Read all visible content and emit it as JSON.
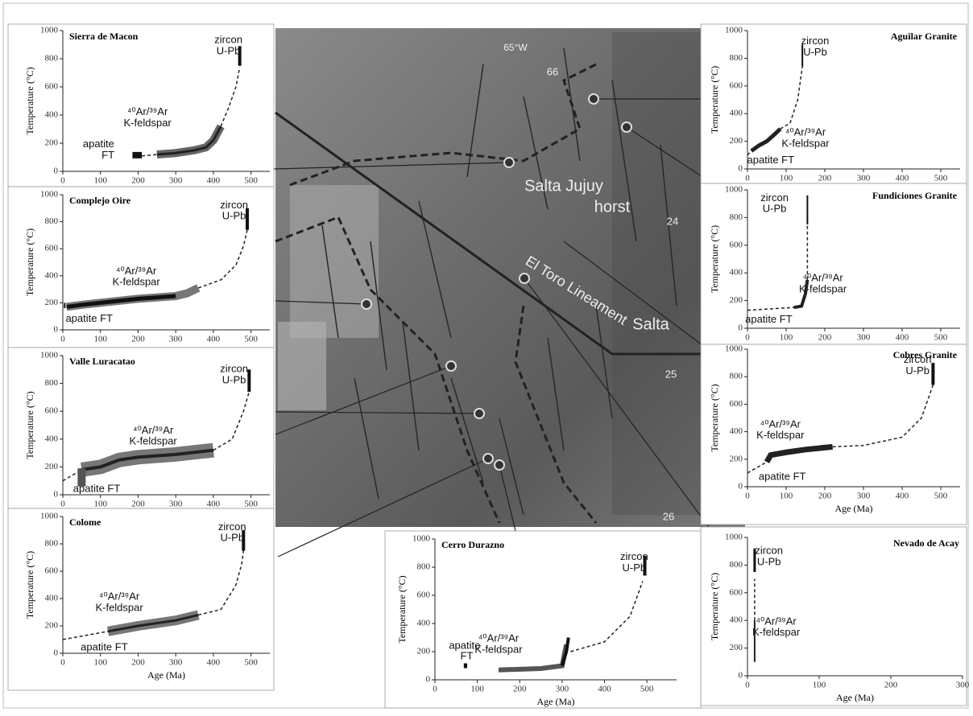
{
  "chart_data": [
    {
      "type": "line",
      "title": "Sierra de Macon",
      "ylabel": "Temperature (°C)",
      "xlim": [
        0,
        550
      ],
      "ylim": [
        0,
        1000
      ],
      "xticks": [
        0,
        100,
        200,
        300,
        400,
        500
      ],
      "yticks": [
        0,
        200,
        400,
        600,
        800,
        1000
      ],
      "annotations": [
        "zircon",
        "U-Pb",
        "⁴⁰Ar/³⁹Ar",
        "K-feldspar",
        "apatite",
        "FT"
      ],
      "series": [
        {
          "x": [
            250,
            300,
            350,
            380,
            400,
            420
          ],
          "values": [
            120,
            130,
            150,
            170,
            220,
            320
          ],
          "color": "#666",
          "width": 10,
          "dash": false
        },
        {
          "x": [
            250,
            300,
            350,
            380,
            400,
            420
          ],
          "values": [
            120,
            130,
            150,
            170,
            220,
            320
          ],
          "color": "#222",
          "width": 3,
          "dash": false
        },
        {
          "x": [
            210,
            250
          ],
          "values": [
            110,
            120
          ],
          "color": "#222",
          "width": 1.5,
          "dash": true
        },
        {
          "x": [
            420,
            440,
            460,
            470
          ],
          "values": [
            320,
            450,
            600,
            740
          ],
          "color": "#222",
          "width": 1.5,
          "dash": true
        },
        {
          "x": [
            470,
            470
          ],
          "values": [
            750,
            890
          ],
          "color": "#111",
          "width": 4,
          "dash": false
        },
        {
          "x": [
            185,
            210
          ],
          "values": [
            115,
            115
          ],
          "color": "#111",
          "width": 8,
          "dash": false
        }
      ]
    },
    {
      "type": "line",
      "title": "Complejo Oire",
      "ylabel": "Temperature (°C)",
      "xlim": [
        0,
        550
      ],
      "ylim": [
        0,
        1000
      ],
      "xticks": [
        0,
        100,
        200,
        300,
        400,
        500
      ],
      "yticks": [
        0,
        200,
        400,
        600,
        800,
        1000
      ],
      "annotations": [
        "zircon",
        "U-Pb",
        "⁴⁰Ar/³⁹Ar",
        "K-feldspar",
        "apatite FT"
      ],
      "series": [
        {
          "x": [
            10,
            50,
            100,
            200,
            300,
            330,
            360
          ],
          "values": [
            170,
            185,
            200,
            230,
            250,
            270,
            310
          ],
          "color": "#777",
          "width": 10,
          "dash": false
        },
        {
          "x": [
            10,
            50,
            100,
            200,
            300
          ],
          "values": [
            170,
            185,
            200,
            230,
            250
          ],
          "color": "#111",
          "width": 5,
          "dash": false
        },
        {
          "x": [
            360,
            420,
            460,
            480,
            490
          ],
          "values": [
            310,
            370,
            480,
            620,
            740
          ],
          "color": "#222",
          "width": 1.5,
          "dash": true
        },
        {
          "x": [
            490,
            490
          ],
          "values": [
            740,
            900
          ],
          "color": "#111",
          "width": 4,
          "dash": false
        },
        {
          "x": [
            5,
            5
          ],
          "values": [
            160,
            200
          ],
          "color": "#111",
          "width": 2,
          "dash": false
        }
      ]
    },
    {
      "type": "line",
      "title": "Valle Luracatao",
      "ylabel": "Temperature (°C)",
      "xlim": [
        0,
        550
      ],
      "ylim": [
        0,
        1000
      ],
      "xticks": [
        0,
        100,
        200,
        300,
        400,
        500
      ],
      "yticks": [
        0,
        200,
        400,
        600,
        800,
        1000
      ],
      "annotations": [
        "zircon",
        "U-Pb",
        "⁴⁰Ar/³⁹Ar",
        "K-feldspar",
        "apatite  FT"
      ],
      "series": [
        {
          "x": [
            50,
            100,
            150,
            200,
            300,
            400
          ],
          "values": [
            180,
            200,
            250,
            270,
            290,
            320
          ],
          "color": "#777",
          "width": 18,
          "dash": false
        },
        {
          "x": [
            50,
            100,
            150,
            200,
            300,
            400
          ],
          "values": [
            180,
            200,
            250,
            270,
            290,
            320
          ],
          "color": "#222",
          "width": 4,
          "dash": false
        },
        {
          "x": [
            0,
            50
          ],
          "values": [
            100,
            180
          ],
          "color": "#222",
          "width": 1.5,
          "dash": true
        },
        {
          "x": [
            400,
            450,
            480,
            495
          ],
          "values": [
            320,
            400,
            600,
            740
          ],
          "color": "#222",
          "width": 1.5,
          "dash": true
        },
        {
          "x": [
            495,
            495
          ],
          "values": [
            740,
            900
          ],
          "color": "#111",
          "width": 4,
          "dash": false
        },
        {
          "x": [
            50,
            50
          ],
          "values": [
            60,
            190
          ],
          "color": "#555",
          "width": 10,
          "dash": false
        }
      ]
    },
    {
      "type": "line",
      "title": "Colome",
      "ylabel": "Temperature (°C)",
      "xlabel": "Age (Ma)",
      "xlim": [
        0,
        550
      ],
      "ylim": [
        0,
        1000
      ],
      "xticks": [
        0,
        100,
        200,
        300,
        400,
        500
      ],
      "yticks": [
        0,
        200,
        400,
        600,
        800,
        1000
      ],
      "annotations": [
        "zircon",
        "U-Pb",
        "⁴⁰Ar/³⁹Ar",
        "K-feldspar",
        "apatite FT"
      ],
      "series": [
        {
          "x": [
            120,
            200,
            300,
            360
          ],
          "values": [
            160,
            200,
            240,
            280
          ],
          "color": "#777",
          "width": 12,
          "dash": false
        },
        {
          "x": [
            120,
            200,
            300,
            360
          ],
          "values": [
            160,
            200,
            240,
            280
          ],
          "color": "#222",
          "width": 3,
          "dash": false
        },
        {
          "x": [
            0,
            120
          ],
          "values": [
            100,
            160
          ],
          "color": "#222",
          "width": 1.5,
          "dash": true
        },
        {
          "x": [
            360,
            420,
            460,
            475,
            480
          ],
          "values": [
            280,
            320,
            500,
            650,
            750
          ],
          "color": "#222",
          "width": 1.5,
          "dash": true
        },
        {
          "x": [
            480,
            480
          ],
          "values": [
            750,
            900
          ],
          "color": "#111",
          "width": 4,
          "dash": false
        }
      ]
    },
    {
      "type": "line",
      "title": "Aguilar Granite",
      "ylabel": "Temperature (°C)",
      "xlim": [
        0,
        550
      ],
      "ylim": [
        0,
        1000
      ],
      "xticks": [
        0,
        100,
        200,
        300,
        400,
        500
      ],
      "yticks": [
        0,
        200,
        400,
        600,
        800,
        1000
      ],
      "annotations": [
        "zircon",
        "U-Pb",
        "⁴⁰Ar/³⁹Ar",
        "K-feldspar",
        "apatite FT"
      ],
      "series": [
        {
          "x": [
            10,
            30,
            50,
            70,
            85
          ],
          "values": [
            130,
            170,
            200,
            250,
            290
          ],
          "color": "#222",
          "width": 5,
          "dash": false
        },
        {
          "x": [
            0,
            10
          ],
          "values": [
            100,
            130
          ],
          "color": "#222",
          "width": 1.5,
          "dash": true
        },
        {
          "x": [
            85,
            110,
            130,
            142
          ],
          "values": [
            290,
            330,
            500,
            740
          ],
          "color": "#222",
          "width": 1.5,
          "dash": true
        },
        {
          "x": [
            142,
            142
          ],
          "values": [
            740,
            900
          ],
          "color": "#111",
          "width": 2,
          "dash": false
        }
      ]
    },
    {
      "type": "line",
      "title": "Fundiciones Granite",
      "ylabel": "Temperature (°C)",
      "xlim": [
        0,
        550
      ],
      "ylim": [
        0,
        1000
      ],
      "xticks": [
        0,
        100,
        200,
        300,
        400,
        500
      ],
      "yticks": [
        0,
        200,
        400,
        600,
        800,
        1000
      ],
      "annotations": [
        "zircon",
        "U-Pb",
        "⁴⁰Ar/³⁹Ar",
        "K-feldspar",
        "apatite FT"
      ],
      "series": [
        {
          "x": [
            120,
            140,
            150,
            155
          ],
          "values": [
            150,
            160,
            250,
            350
          ],
          "color": "#222",
          "width": 4,
          "dash": false
        },
        {
          "x": [
            0,
            120
          ],
          "values": [
            130,
            150
          ],
          "color": "#222",
          "width": 1.5,
          "dash": true
        },
        {
          "x": [
            155,
            155
          ],
          "values": [
            350,
            750
          ],
          "color": "#222",
          "width": 1.5,
          "dash": true
        },
        {
          "x": [
            155,
            155
          ],
          "values": [
            750,
            960
          ],
          "color": "#111",
          "width": 2,
          "dash": false
        }
      ]
    },
    {
      "type": "line",
      "title": "Cobres Granite",
      "ylabel": "Temperature (°C)",
      "xlabel": "Age (Ma)",
      "xlim": [
        0,
        550
      ],
      "ylim": [
        0,
        1000
      ],
      "xticks": [
        0,
        100,
        200,
        300,
        400,
        500
      ],
      "yticks": [
        0,
        200,
        400,
        600,
        800,
        1000
      ],
      "annotations": [
        "zircon",
        "U-Pb",
        "⁴⁰Ar/³⁹Ar",
        "K-feldspar",
        "apatite FT"
      ],
      "series": [
        {
          "x": [
            50,
            60,
            100,
            150,
            220
          ],
          "values": [
            180,
            230,
            250,
            270,
            290
          ],
          "color": "#222",
          "width": 7,
          "dash": false
        },
        {
          "x": [
            0,
            50
          ],
          "values": [
            100,
            180
          ],
          "color": "#222",
          "width": 1.5,
          "dash": true
        },
        {
          "x": [
            220,
            300,
            400,
            450,
            480
          ],
          "values": [
            290,
            300,
            360,
            500,
            740
          ],
          "color": "#222",
          "width": 1.5,
          "dash": true
        },
        {
          "x": [
            480,
            480
          ],
          "values": [
            740,
            900
          ],
          "color": "#111",
          "width": 4,
          "dash": false
        }
      ]
    },
    {
      "type": "line",
      "title": "Nevado de Acay",
      "ylabel": "Temperature (°C)",
      "xlabel": "Age (Ma)",
      "xlim": [
        0,
        300
      ],
      "ylim": [
        0,
        1000
      ],
      "xticks": [
        0,
        100,
        200,
        300
      ],
      "yticks": [
        0,
        200,
        400,
        600,
        800,
        1000
      ],
      "annotations": [
        "zircon",
        "U-Pb",
        "⁴⁰Ar/³⁹Ar",
        "K-feldspar"
      ],
      "series": [
        {
          "x": [
            10,
            10
          ],
          "values": [
            100,
            400
          ],
          "color": "#222",
          "width": 2,
          "dash": false
        },
        {
          "x": [
            10,
            10
          ],
          "values": [
            400,
            700
          ],
          "color": "#222",
          "width": 1.5,
          "dash": true
        },
        {
          "x": [
            10,
            10
          ],
          "values": [
            750,
            920
          ],
          "color": "#111",
          "width": 3,
          "dash": false
        }
      ]
    },
    {
      "type": "line",
      "title": "Cerro Durazno",
      "ylabel": "Temperature (°C)",
      "xlabel": "Age (Ma)",
      "xlim": [
        0,
        570
      ],
      "ylim": [
        0,
        1000
      ],
      "xticks": [
        0,
        100,
        200,
        300,
        400,
        500
      ],
      "yticks": [
        0,
        200,
        400,
        600,
        800,
        1000
      ],
      "annotations": [
        "zircon",
        "U-Pb",
        "apatite",
        "FT",
        "⁴⁰Ar/³⁹Ar",
        "K-feldspar"
      ],
      "series": [
        {
          "x": [
            150,
            250,
            300,
            310
          ],
          "values": [
            70,
            80,
            100,
            250
          ],
          "color": "#555",
          "width": 6,
          "dash": false
        },
        {
          "x": [
            300,
            310,
            315
          ],
          "values": [
            100,
            200,
            300
          ],
          "color": "#111",
          "width": 4,
          "dash": false
        },
        {
          "x": [
            320,
            400,
            460,
            490
          ],
          "values": [
            200,
            270,
            450,
            700
          ],
          "color": "#222",
          "width": 1.5,
          "dash": true
        },
        {
          "x": [
            495,
            495
          ],
          "values": [
            740,
            880
          ],
          "color": "#111",
          "width": 4,
          "dash": false
        },
        {
          "x": [
            68,
            76
          ],
          "values": [
            100,
            100
          ],
          "color": "#111",
          "width": 6,
          "dash": false
        }
      ]
    }
  ],
  "map": {
    "labels": [
      "Salta Jujuy",
      "horst",
      "El Toro Lineament",
      "Salta",
      "24",
      "25",
      "26",
      "66",
      "65°W"
    ]
  }
}
